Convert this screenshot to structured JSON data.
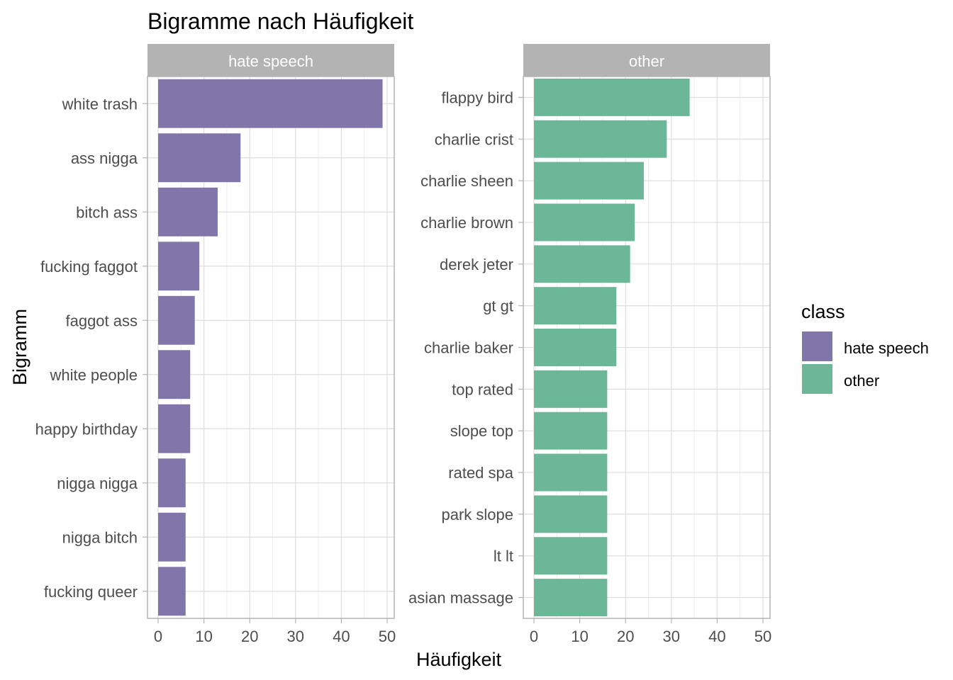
{
  "chart_data": {
    "type": "bar",
    "orientation": "horizontal",
    "title": "Bigramme nach Häufigkeit",
    "xlabel": "Häufigkeit",
    "ylabel": "Bigramm",
    "xlim": [
      0,
      50
    ],
    "x_ticks": [
      0,
      10,
      20,
      30,
      40,
      50
    ],
    "grid": true,
    "legend": {
      "title": "class",
      "position": "right",
      "entries": [
        {
          "label": "hate speech",
          "color": "#8076aa"
        },
        {
          "label": "other",
          "color": "#6db799"
        }
      ]
    },
    "panels": [
      {
        "strip_label": "hate speech",
        "color": "#8076aa",
        "categories": [
          "white trash",
          "ass nigga",
          "bitch ass",
          "fucking faggot",
          "faggot ass",
          "white people",
          "happy birthday",
          "nigga nigga",
          "nigga bitch",
          "fucking queer"
        ],
        "values": [
          49,
          18,
          13,
          9,
          8,
          7,
          7,
          6,
          6,
          6
        ]
      },
      {
        "strip_label": "other",
        "color": "#6db799",
        "categories": [
          "flappy bird",
          "charlie crist",
          "charlie sheen",
          "charlie brown",
          "derek jeter",
          "gt gt",
          "charlie baker",
          "top rated",
          "slope top",
          "rated spa",
          "park slope",
          "lt lt",
          "asian massage"
        ],
        "values": [
          34,
          29,
          24,
          22,
          21,
          18,
          18,
          16,
          16,
          16,
          16,
          16,
          16
        ]
      }
    ]
  }
}
